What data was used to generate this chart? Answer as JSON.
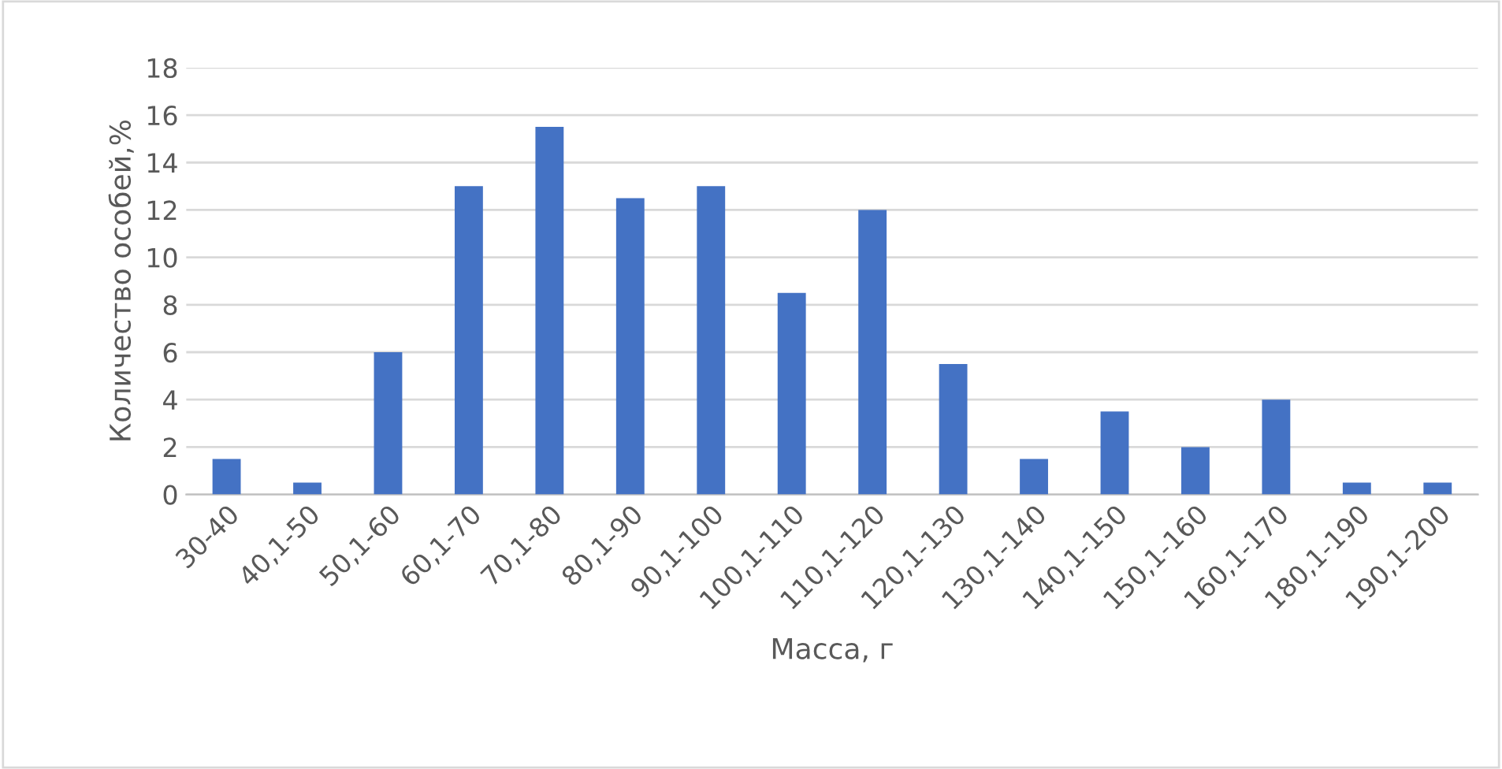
{
  "chart_data": {
    "type": "bar",
    "xlabel": "Масса, г",
    "ylabel": "Количество особей,%",
    "categories": [
      "30-40",
      "40,1-50",
      "50,1-60",
      "60,1-70",
      "70,1-80",
      "80,1-90",
      "90,1-100",
      "100,1-110",
      "110,1-120",
      "120,1-130",
      "130,1-140",
      "140,1-150",
      "150,1-160",
      "160,1-170",
      "180,1-190",
      "190,1-200"
    ],
    "values": [
      1.5,
      0.5,
      6,
      13,
      15.5,
      12.5,
      13,
      8.5,
      12,
      5.5,
      1.5,
      3.5,
      2,
      4,
      0.5,
      0.5
    ],
    "color": "#4472c4",
    "ylim": [
      0,
      18
    ],
    "yticks": [
      0,
      2,
      4,
      6,
      8,
      10,
      12,
      14,
      16,
      18
    ],
    "grid": "y",
    "legend": false
  }
}
